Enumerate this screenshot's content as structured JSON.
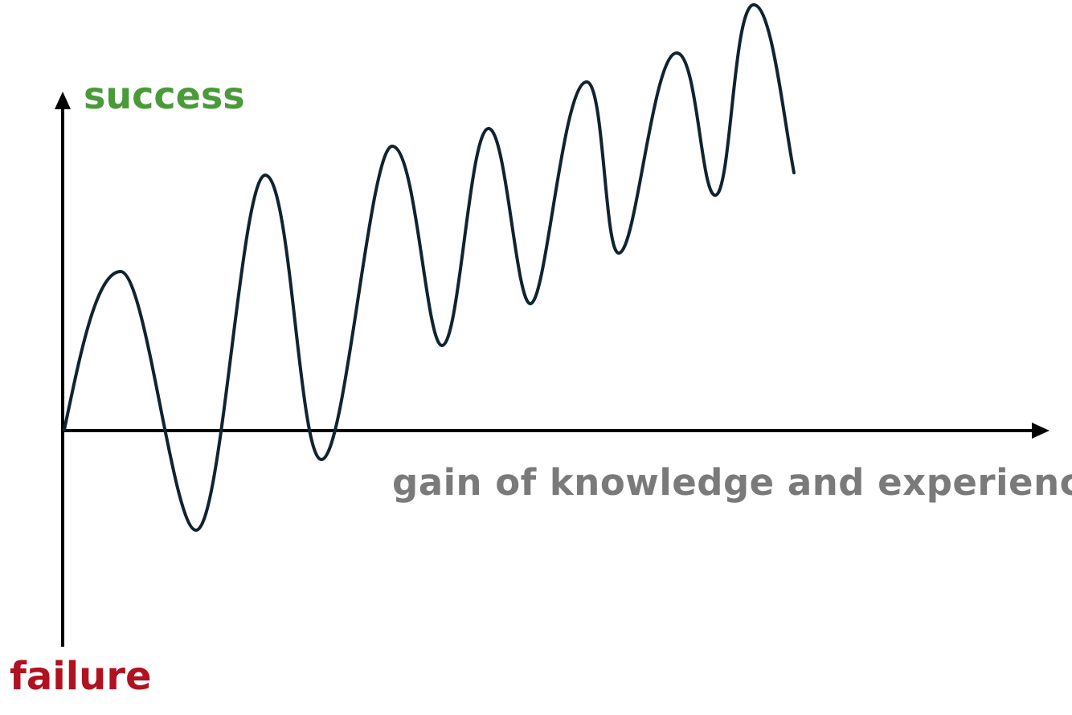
{
  "labels": {
    "top": "success",
    "bottom": "failure",
    "x_axis": "gain of knowledge and experience"
  },
  "colors": {
    "top": "#4a9a3a",
    "bottom": "#b01220",
    "x_axis": "#7a7a7a",
    "axes": "#000000",
    "curve": "#0f2430"
  },
  "curve": {
    "description_shape": "oscillating wave with growing amplitude-center trend, crossing below axis early then rising overall"
  }
}
